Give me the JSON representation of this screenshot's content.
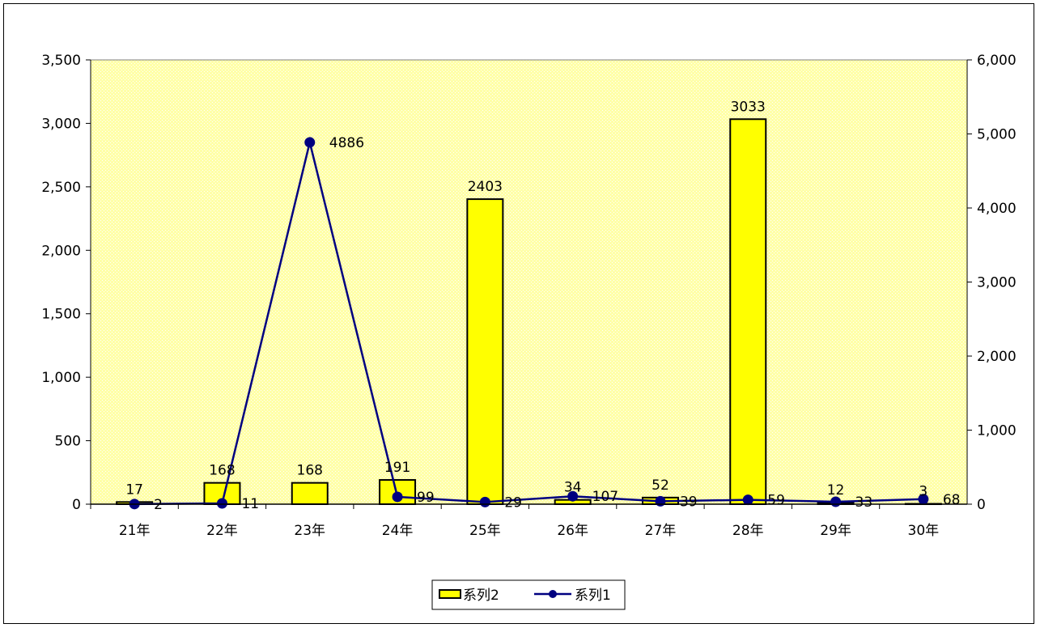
{
  "chart_data": {
    "type": "bar+line",
    "categories": [
      "21年",
      "22年",
      "23年",
      "24年",
      "25年",
      "26年",
      "27年",
      "28年",
      "29年",
      "30年"
    ],
    "series": [
      {
        "name": "系列2",
        "type": "bar",
        "axis": "left",
        "values": [
          17,
          168,
          168,
          191,
          2403,
          34,
          52,
          3033,
          12,
          3
        ],
        "color": "#ffff00"
      },
      {
        "name": "系列1",
        "type": "line",
        "axis": "right",
        "values": [
          2,
          11,
          4886,
          99,
          29,
          107,
          39,
          59,
          33,
          68
        ],
        "color": "#000080"
      }
    ],
    "y_left": {
      "range": [
        0,
        3500
      ],
      "ticks": [
        "0",
        "500",
        "1,000",
        "1,500",
        "2,000",
        "2,500",
        "3,000",
        "3,500"
      ]
    },
    "y_right": {
      "range": [
        0,
        6000
      ],
      "ticks": [
        "0",
        "1,000",
        "2,000",
        "3,000",
        "4,000",
        "5,000",
        "6,000"
      ]
    },
    "plot_background": "#ffffc0",
    "grid": false,
    "legend": "bottom-center"
  }
}
